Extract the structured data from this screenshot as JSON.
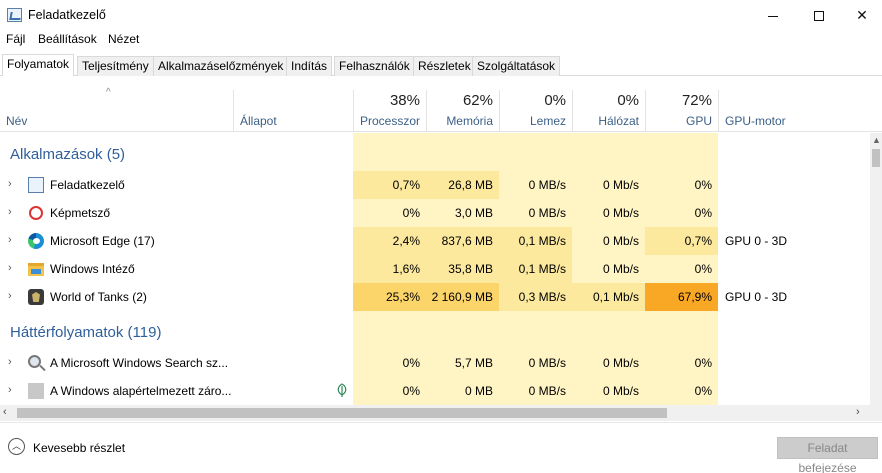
{
  "window": {
    "title": "Feladatkezelő"
  },
  "menu": [
    "Fájl",
    "Beállítások",
    "Nézet"
  ],
  "tabs": [
    "Folyamatok",
    "Teljesítmény",
    "Alkalmazáselőzmények",
    "Indítás",
    "Felhasználók",
    "Részletek",
    "Szolgáltatások"
  ],
  "active_tab": "Folyamatok",
  "header": {
    "name": "Név",
    "status": "Állapot",
    "cpu": {
      "pct": "38%",
      "label": "Processzor"
    },
    "memory": {
      "pct": "62%",
      "label": "Memória"
    },
    "disk": {
      "pct": "0%",
      "label": "Lemez"
    },
    "network": {
      "pct": "0%",
      "label": "Hálózat"
    },
    "gpu": {
      "pct": "72%",
      "label": "GPU"
    },
    "gpu_engine": "GPU-motor"
  },
  "groups": {
    "apps": "Alkalmazások (5)",
    "background": "Háttérfolyamatok (119)"
  },
  "apps": [
    {
      "name": "Feladatkezelő",
      "icon": "task-manager-icon",
      "cpu": "0,7%",
      "mem": "26,8 MB",
      "disk": "0 MB/s",
      "net": "0 Mb/s",
      "gpu": "0%",
      "engine": ""
    },
    {
      "name": "Képmetsző",
      "icon": "snipping-tool-icon",
      "cpu": "0%",
      "mem": "3,0 MB",
      "disk": "0 MB/s",
      "net": "0 Mb/s",
      "gpu": "0%",
      "engine": ""
    },
    {
      "name": "Microsoft Edge (17)",
      "icon": "edge-icon",
      "cpu": "2,4%",
      "mem": "837,6 MB",
      "disk": "0,1 MB/s",
      "net": "0 Mb/s",
      "gpu": "0,7%",
      "engine": "GPU 0 - 3D"
    },
    {
      "name": "Windows Intéző",
      "icon": "folder-icon",
      "cpu": "1,6%",
      "mem": "35,8 MB",
      "disk": "0,1 MB/s",
      "net": "0 Mb/s",
      "gpu": "0%",
      "engine": ""
    },
    {
      "name": "World of Tanks (2)",
      "icon": "world-of-tanks-icon",
      "cpu": "25,3%",
      "mem": "2 160,9 MB",
      "disk": "0,3 MB/s",
      "net": "0,1 Mb/s",
      "gpu": "67,9%",
      "engine": "GPU 0 - 3D"
    }
  ],
  "background": [
    {
      "name": "A Microsoft Windows Search sz...",
      "icon": "search-service-icon",
      "cpu": "0%",
      "mem": "5,7 MB",
      "disk": "0 MB/s",
      "net": "0 Mb/s",
      "gpu": "0%",
      "engine": ""
    },
    {
      "name": "A Windows alapértelmezett záro...",
      "icon": "generic-process-icon",
      "cpu": "0%",
      "mem": "0 MB",
      "disk": "0 MB/s",
      "net": "0 Mb/s",
      "gpu": "0%",
      "engine": ""
    }
  ],
  "footer": {
    "less_details": "Kevesebb részlet",
    "end_task": "Feladat befejezése"
  },
  "colors": {
    "heat_light": "#fff4c4",
    "heat_mid": "#fce99d",
    "heat_strong": "#fbd46a",
    "heat_gpu_strong": "#f9a825",
    "group_text": "#2f5f9b"
  }
}
